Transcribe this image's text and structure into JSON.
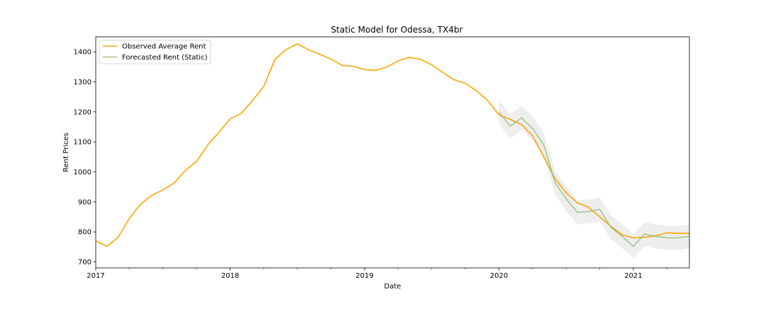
{
  "chart_data": {
    "type": "line",
    "title": "Static Model for Odessa, TX4br",
    "xlabel": "Date",
    "ylabel": "Rent Prices",
    "xlim": [
      "2017-01",
      "2021-06"
    ],
    "ylim": [
      680,
      1450
    ],
    "grid": false,
    "legend_position": "top-left",
    "x_ticks": [
      {
        "label": "2017",
        "value": "2017-01"
      },
      {
        "label": "2018",
        "value": "2018-01"
      },
      {
        "label": "2019",
        "value": "2019-01"
      },
      {
        "label": "2020",
        "value": "2020-01"
      },
      {
        "label": "2021",
        "value": "2021-01"
      }
    ],
    "y_ticks": [
      700,
      800,
      900,
      1000,
      1100,
      1200,
      1300,
      1400
    ],
    "series": [
      {
        "name": "Observed Average Rent",
        "color": "#ffa500",
        "x": [
          "2017-01",
          "2017-02",
          "2017-03",
          "2017-04",
          "2017-05",
          "2017-06",
          "2017-07",
          "2017-08",
          "2017-09",
          "2017-10",
          "2017-11",
          "2017-12",
          "2018-01",
          "2018-02",
          "2018-03",
          "2018-04",
          "2018-05",
          "2018-06",
          "2018-07",
          "2018-08",
          "2018-09",
          "2018-10",
          "2018-11",
          "2018-12",
          "2019-01",
          "2019-02",
          "2019-03",
          "2019-04",
          "2019-05",
          "2019-06",
          "2019-07",
          "2019-08",
          "2019-09",
          "2019-10",
          "2019-11",
          "2019-12",
          "2020-01",
          "2020-02",
          "2020-03",
          "2020-04",
          "2020-05",
          "2020-06",
          "2020-07",
          "2020-08",
          "2020-09",
          "2020-10",
          "2020-11",
          "2020-12",
          "2021-01",
          "2021-02",
          "2021-03",
          "2021-04",
          "2021-05",
          "2021-06"
        ],
        "values": [
          770,
          752,
          782,
          845,
          892,
          922,
          940,
          963,
          1005,
          1035,
          1090,
          1132,
          1177,
          1195,
          1238,
          1285,
          1375,
          1408,
          1427,
          1407,
          1392,
          1376,
          1355,
          1352,
          1341,
          1338,
          1350,
          1370,
          1382,
          1375,
          1357,
          1331,
          1307,
          1295,
          1270,
          1237,
          1190,
          1175,
          1158,
          1120,
          1050,
          978,
          930,
          897,
          882,
          850,
          818,
          790,
          780,
          782,
          787,
          797,
          795,
          795
        ]
      },
      {
        "name": "Forecasted Rent (Static)",
        "color": "#8fbc7a",
        "x": [
          "2020-01",
          "2020-02",
          "2020-03",
          "2020-04",
          "2020-05",
          "2020-06",
          "2020-07",
          "2020-08",
          "2020-09",
          "2020-10",
          "2020-11",
          "2020-12",
          "2021-01",
          "2021-02",
          "2021-03",
          "2021-04",
          "2021-05",
          "2021-06"
        ],
        "values": [
          1200,
          1152,
          1180,
          1145,
          1090,
          965,
          910,
          865,
          868,
          875,
          815,
          785,
          752,
          793,
          785,
          780,
          780,
          785
        ],
        "ci_lower": [
          1160,
          1110,
          1140,
          1105,
          1050,
          925,
          870,
          825,
          828,
          835,
          775,
          745,
          712,
          753,
          745,
          740,
          740,
          745
        ],
        "ci_upper": [
          1240,
          1192,
          1220,
          1185,
          1130,
          1005,
          950,
          905,
          908,
          915,
          855,
          825,
          792,
          833,
          825,
          820,
          820,
          825
        ]
      }
    ]
  }
}
